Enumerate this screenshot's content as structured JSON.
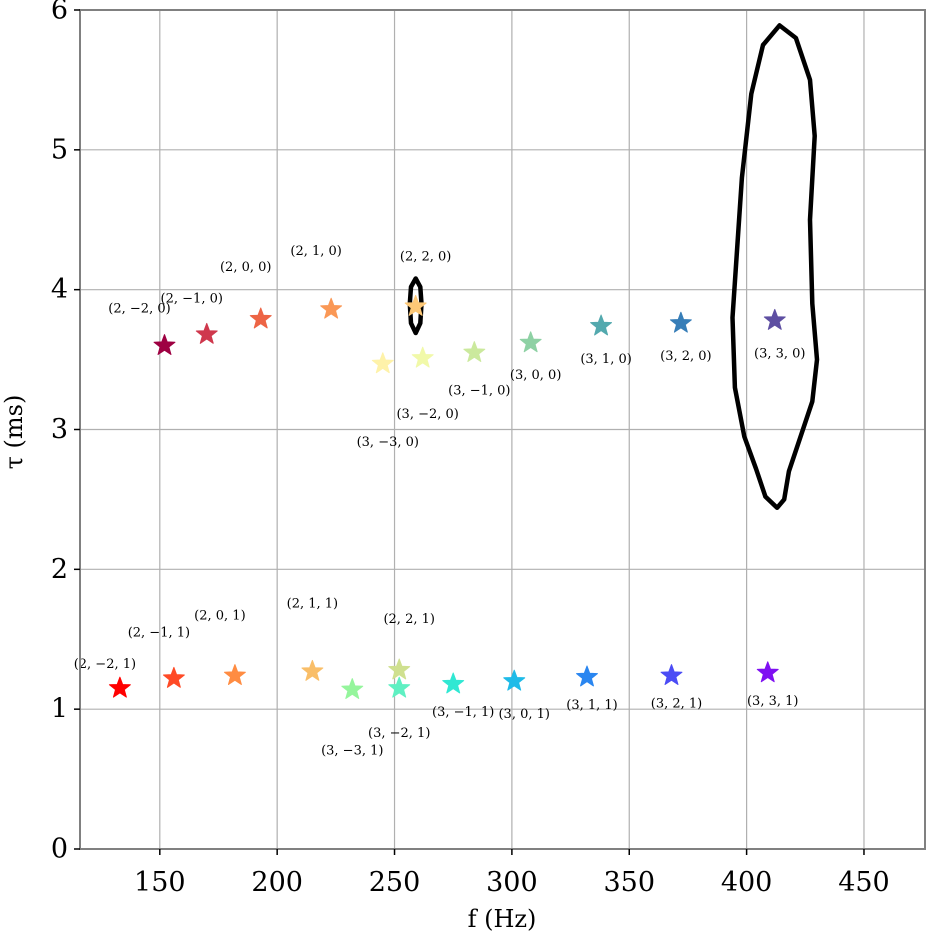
{
  "chart_data": {
    "type": "scatter",
    "title": "",
    "xlabel": "f (Hz)",
    "ylabel": "τ (ms)",
    "xlim": [
      116,
      476
    ],
    "ylim": [
      0,
      6
    ],
    "xticks": [
      150,
      200,
      250,
      300,
      350,
      400,
      450
    ],
    "yticks": [
      0,
      1,
      2,
      3,
      4,
      5,
      6
    ],
    "grid": true,
    "marker": "star",
    "points": [
      {
        "label": "(2, −2, 0)",
        "x": 152,
        "y": 3.6,
        "color": "#9e0142"
      },
      {
        "label": "(2, −1, 0)",
        "x": 170,
        "y": 3.68,
        "color": "#cf384d"
      },
      {
        "label": "(2, 0, 0)",
        "x": 193,
        "y": 3.79,
        "color": "#ed6445"
      },
      {
        "label": "(2, 1, 0)",
        "x": 223,
        "y": 3.86,
        "color": "#fa9856"
      },
      {
        "label": "(2, 2, 0)",
        "x": 259,
        "y": 3.88,
        "color": "#fdc877"
      },
      {
        "label": "(3, −3, 0)",
        "x": 245,
        "y": 3.47,
        "color": "#fef2a9"
      },
      {
        "label": "(3, −2, 0)",
        "x": 262,
        "y": 3.51,
        "color": "#f1f9a9"
      },
      {
        "label": "(3, −1, 0)",
        "x": 284,
        "y": 3.55,
        "color": "#cbe99d"
      },
      {
        "label": "(3, 0, 0)",
        "x": 308,
        "y": 3.62,
        "color": "#8ed1a4"
      },
      {
        "label": "(3, 1, 0)",
        "x": 338,
        "y": 3.74,
        "color": "#53a9ae"
      },
      {
        "label": "(3, 2, 0)",
        "x": 372,
        "y": 3.76,
        "color": "#377eb8"
      },
      {
        "label": "(3, 3, 0)",
        "x": 412,
        "y": 3.78,
        "color": "#5e4fa2"
      },
      {
        "label": "(2, −2, 1)",
        "x": 133,
        "y": 1.15,
        "color": "#ff0000"
      },
      {
        "label": "(2, −1, 1)",
        "x": 156,
        "y": 1.22,
        "color": "#ff4a26"
      },
      {
        "label": "(2, 0, 1)",
        "x": 182,
        "y": 1.24,
        "color": "#ff8c42"
      },
      {
        "label": "(2, 1, 1)",
        "x": 215,
        "y": 1.27,
        "color": "#f9be68"
      },
      {
        "label": "(2, 2, 1)",
        "x": 252,
        "y": 1.28,
        "color": "#cfe08f"
      },
      {
        "label": "(3, −3, 1)",
        "x": 232,
        "y": 1.14,
        "color": "#95f59c"
      },
      {
        "label": "(3, −2, 1)",
        "x": 252,
        "y": 1.15,
        "color": "#5ff0c2"
      },
      {
        "label": "(3, −1, 1)",
        "x": 275,
        "y": 1.18,
        "color": "#30e8d3"
      },
      {
        "label": "(3, 0, 1)",
        "x": 301,
        "y": 1.2,
        "color": "#1fbbe8"
      },
      {
        "label": "(3, 1, 1)",
        "x": 332,
        "y": 1.23,
        "color": "#2a86f0"
      },
      {
        "label": "(3, 2, 1)",
        "x": 368,
        "y": 1.24,
        "color": "#4b4cf5"
      },
      {
        "label": "(3, 3, 1)",
        "x": 409,
        "y": 1.26,
        "color": "#7f10f2"
      }
    ],
    "contours": [
      {
        "name": "small contour near (2, 2, 0)",
        "path": [
          [
            259,
            4.08
          ],
          [
            261,
            4.02
          ],
          [
            261.5,
            3.9
          ],
          [
            261,
            3.76
          ],
          [
            259,
            3.69
          ],
          [
            257,
            3.76
          ],
          [
            256.5,
            3.9
          ],
          [
            257,
            4.02
          ],
          [
            259,
            4.08
          ]
        ]
      },
      {
        "name": "large contour around (3, 3, 0)",
        "path": [
          [
            414,
            5.89
          ],
          [
            421,
            5.8
          ],
          [
            427,
            5.5
          ],
          [
            429,
            5.1
          ],
          [
            427,
            4.5
          ],
          [
            428,
            3.9
          ],
          [
            430,
            3.5
          ],
          [
            428,
            3.2
          ],
          [
            423,
            2.95
          ],
          [
            418,
            2.7
          ],
          [
            416,
            2.5
          ],
          [
            413,
            2.44
          ],
          [
            408,
            2.52
          ],
          [
            404,
            2.72
          ],
          [
            399,
            2.95
          ],
          [
            395,
            3.3
          ],
          [
            394,
            3.8
          ],
          [
            396,
            4.3
          ],
          [
            398,
            4.8
          ],
          [
            402,
            5.4
          ],
          [
            407,
            5.75
          ],
          [
            414,
            5.89
          ]
        ]
      }
    ]
  }
}
